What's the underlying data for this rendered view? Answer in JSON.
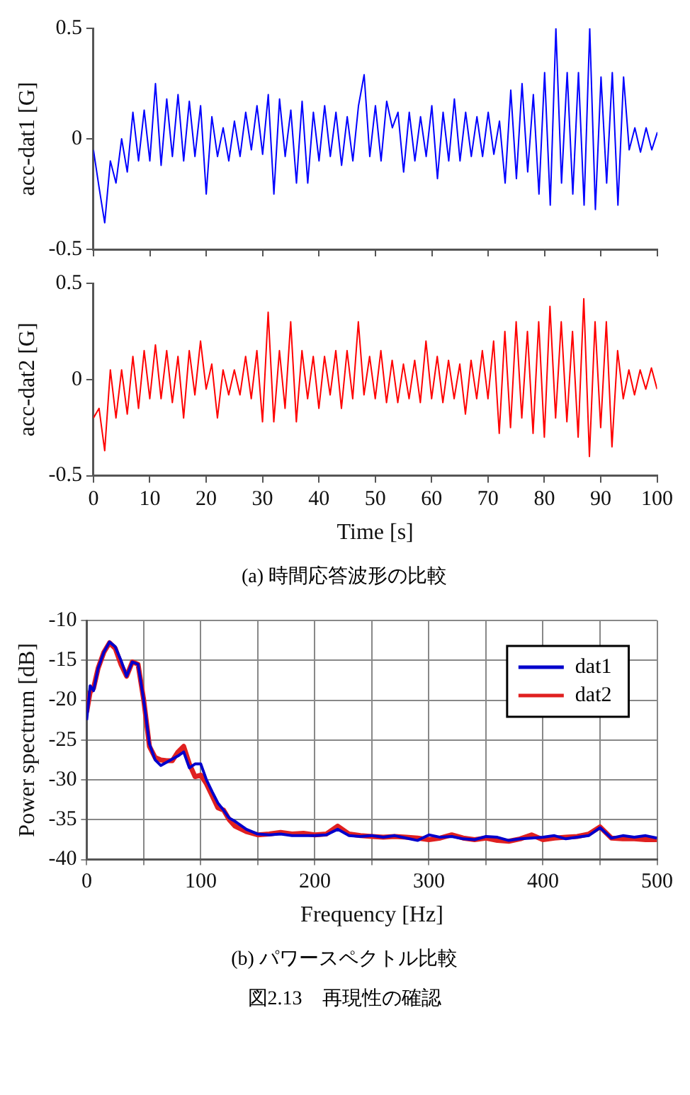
{
  "chart_data": [
    {
      "type": "line",
      "ylabel": "acc-dat1 [G]",
      "xlim": [
        0,
        100
      ],
      "xticks": [
        0,
        10,
        20,
        30,
        40,
        50,
        60,
        70,
        80,
        90,
        100
      ],
      "ylim": [
        -0.5,
        0.5
      ],
      "yticks": [
        -0.5,
        0,
        0.5
      ],
      "tick_labels": "y",
      "grid": false,
      "legend": false,
      "marker": "none",
      "series": [
        {
          "color": "#0000ff",
          "x": [
            0,
            1,
            2,
            3,
            4,
            5,
            6,
            7,
            8,
            9,
            10,
            11,
            12,
            13,
            14,
            15,
            16,
            17,
            18,
            19,
            20,
            21,
            22,
            23,
            24,
            25,
            26,
            27,
            28,
            29,
            30,
            31,
            32,
            33,
            34,
            35,
            36,
            37,
            38,
            39,
            40,
            41,
            42,
            43,
            44,
            45,
            46,
            47,
            48,
            49,
            50,
            51,
            52,
            53,
            54,
            55,
            56,
            57,
            58,
            59,
            60,
            61,
            62,
            63,
            64,
            65,
            66,
            67,
            68,
            69,
            70,
            71,
            72,
            73,
            74,
            75,
            76,
            77,
            78,
            79,
            80,
            81,
            82,
            83,
            84,
            85,
            86,
            87,
            88,
            89,
            90,
            91,
            92,
            93,
            94,
            95,
            96,
            97,
            98,
            99,
            100
          ],
          "values": [
            -0.05,
            -0.22,
            -0.38,
            -0.1,
            -0.2,
            0,
            -0.15,
            0.12,
            -0.1,
            0.13,
            -0.1,
            0.25,
            -0.12,
            0.18,
            -0.08,
            0.2,
            -0.1,
            0.17,
            -0.08,
            0.15,
            -0.25,
            0.1,
            -0.08,
            0.05,
            -0.1,
            0.08,
            -0.08,
            0.12,
            -0.05,
            0.15,
            -0.07,
            0.2,
            -0.25,
            0.18,
            -0.08,
            0.13,
            -0.2,
            0.17,
            -0.2,
            0.12,
            -0.1,
            0.15,
            -0.08,
            0.12,
            -0.12,
            0.1,
            -0.1,
            0.15,
            0.29,
            -0.08,
            0.15,
            -0.1,
            0.17,
            0.05,
            0.12,
            -0.15,
            0.12,
            -0.1,
            0.1,
            -0.08,
            0.15,
            -0.18,
            0.12,
            -0.1,
            0.18,
            -0.1,
            0.12,
            -0.08,
            0.1,
            -0.08,
            0.12,
            -0.07,
            0.08,
            -0.2,
            0.22,
            -0.18,
            0.25,
            -0.15,
            0.2,
            -0.25,
            0.3,
            -0.3,
            0.5,
            -0.2,
            0.3,
            -0.25,
            0.3,
            -0.3,
            0.5,
            -0.32,
            0.28,
            -0.2,
            0.3,
            -0.3,
            0.28,
            -0.05,
            0.05,
            -0.06,
            0.05,
            -0.05,
            0.03
          ]
        }
      ]
    },
    {
      "type": "line",
      "ylabel": "acc-dat2 [G]",
      "xlabel": "Time [s]",
      "xlim": [
        0,
        100
      ],
      "xticks": [
        0,
        10,
        20,
        30,
        40,
        50,
        60,
        70,
        80,
        90,
        100
      ],
      "ylim": [
        -0.5,
        0.5
      ],
      "yticks": [
        -0.5,
        0,
        0.5
      ],
      "grid": false,
      "legend": false,
      "marker": "none",
      "annotations": [
        "(a)  時間応答波形の比較"
      ],
      "series": [
        {
          "color": "#ff0000",
          "x": [
            0,
            1,
            2,
            3,
            4,
            5,
            6,
            7,
            8,
            9,
            10,
            11,
            12,
            13,
            14,
            15,
            16,
            17,
            18,
            19,
            20,
            21,
            22,
            23,
            24,
            25,
            26,
            27,
            28,
            29,
            30,
            31,
            32,
            33,
            34,
            35,
            36,
            37,
            38,
            39,
            40,
            41,
            42,
            43,
            44,
            45,
            46,
            47,
            48,
            49,
            50,
            51,
            52,
            53,
            54,
            55,
            56,
            57,
            58,
            59,
            60,
            61,
            62,
            63,
            64,
            65,
            66,
            67,
            68,
            69,
            70,
            71,
            72,
            73,
            74,
            75,
            76,
            77,
            78,
            79,
            80,
            81,
            82,
            83,
            84,
            85,
            86,
            87,
            88,
            89,
            90,
            91,
            92,
            93,
            94,
            95,
            96,
            97,
            98,
            99,
            100
          ],
          "values": [
            -0.2,
            -0.15,
            -0.37,
            0.05,
            -0.2,
            0.05,
            -0.18,
            0.12,
            -0.15,
            0.15,
            -0.1,
            0.18,
            -0.1,
            0.15,
            -0.12,
            0.12,
            -0.2,
            0.15,
            -0.08,
            0.2,
            -0.05,
            0.08,
            -0.2,
            0.05,
            -0.08,
            0.05,
            -0.08,
            0.12,
            -0.1,
            0.15,
            -0.22,
            0.35,
            -0.22,
            0.15,
            -0.15,
            0.3,
            -0.22,
            0.15,
            -0.1,
            0.12,
            -0.15,
            0.12,
            -0.08,
            0.15,
            -0.15,
            0.15,
            -0.1,
            0.3,
            -0.08,
            0.12,
            -0.1,
            0.15,
            -0.12,
            0.1,
            -0.12,
            0.08,
            -0.1,
            0.1,
            -0.12,
            0.2,
            -0.1,
            0.12,
            -0.12,
            0.1,
            -0.1,
            0.08,
            -0.18,
            0.1,
            -0.1,
            0.15,
            -0.1,
            0.2,
            -0.28,
            0.25,
            -0.25,
            0.3,
            -0.2,
            0.25,
            -0.28,
            0.3,
            -0.3,
            0.38,
            -0.2,
            0.3,
            -0.22,
            0.25,
            -0.3,
            0.42,
            -0.4,
            0.3,
            -0.25,
            0.3,
            -0.35,
            0.15,
            -0.1,
            0.05,
            -0.08,
            0.05,
            -0.05,
            0.06,
            -0.05
          ]
        }
      ]
    },
    {
      "type": "line",
      "ylabel": "Power spectrum [dB]",
      "xlabel": "Frequency [Hz]",
      "xlim": [
        0,
        500
      ],
      "xticks": [
        0,
        {
          "value": 50,
          "label": null
        },
        100,
        {
          "value": 150,
          "label": null
        },
        200,
        {
          "value": 250,
          "label": null
        },
        300,
        {
          "value": 350,
          "label": null
        },
        400,
        {
          "value": 450,
          "label": null
        },
        500
      ],
      "ylim": [
        -40,
        -10
      ],
      "yticks": [
        -40,
        -35,
        -30,
        -25,
        -20,
        -15,
        -10
      ],
      "grid": true,
      "legend": "top right",
      "marker": "none",
      "annotations": [
        "(b)  パワースペクトル比較",
        "図2.13　再現性の確認"
      ],
      "series": [
        {
          "name": "dat1",
          "color": "#0000cc",
          "x": [
            0,
            3,
            6,
            10,
            15,
            20,
            25,
            30,
            35,
            40,
            45,
            50,
            55,
            60,
            65,
            70,
            75,
            80,
            85,
            90,
            95,
            100,
            105,
            110,
            115,
            120,
            125,
            130,
            140,
            150,
            160,
            170,
            180,
            190,
            200,
            210,
            220,
            230,
            240,
            250,
            260,
            270,
            280,
            290,
            300,
            310,
            320,
            330,
            340,
            350,
            360,
            370,
            380,
            390,
            400,
            410,
            420,
            430,
            440,
            450,
            460,
            470,
            480,
            490,
            500
          ],
          "values": [
            -22.5,
            -18.2,
            -18.8,
            -16,
            -14,
            -12.7,
            -13.3,
            -15,
            -17,
            -15.2,
            -15.5,
            -20,
            -25.5,
            -27.5,
            -28.2,
            -27.8,
            -27.4,
            -27,
            -26.5,
            -28.5,
            -28,
            -28,
            -30,
            -31.5,
            -32.9,
            -33.8,
            -34.8,
            -35.2,
            -36.2,
            -36.8,
            -36.9,
            -36.8,
            -37,
            -37,
            -37,
            -36.9,
            -36.2,
            -37,
            -37.1,
            -37,
            -37.2,
            -37,
            -37.3,
            -37.6,
            -36.9,
            -37.2,
            -37.1,
            -37.4,
            -37.5,
            -37.1,
            -37.2,
            -37.6,
            -37.4,
            -37.3,
            -37.2,
            -37,
            -37.4,
            -37.2,
            -37,
            -36,
            -37.3,
            -37,
            -37.2,
            -37,
            -37.3
          ]
        },
        {
          "name": "dat2",
          "color": "#e02020",
          "x": [
            0,
            3,
            6,
            10,
            15,
            20,
            25,
            30,
            35,
            40,
            45,
            50,
            55,
            60,
            65,
            70,
            75,
            80,
            85,
            90,
            95,
            100,
            105,
            110,
            115,
            120,
            125,
            130,
            140,
            150,
            160,
            170,
            180,
            190,
            200,
            210,
            220,
            230,
            240,
            250,
            260,
            270,
            280,
            290,
            300,
            310,
            320,
            330,
            340,
            350,
            360,
            370,
            380,
            390,
            400,
            410,
            420,
            430,
            440,
            450,
            460,
            470,
            480,
            490,
            500
          ],
          "values": [
            -21.5,
            -19,
            -18.5,
            -16,
            -14,
            -12.8,
            -13.5,
            -15.5,
            -17,
            -15.2,
            -15.5,
            -20,
            -25.8,
            -27.2,
            -27.5,
            -27.6,
            -27.6,
            -26.5,
            -25.8,
            -28,
            -29.6,
            -29.4,
            -30.5,
            -32,
            -33.5,
            -33.8,
            -35,
            -35.8,
            -36.5,
            -36.9,
            -36.8,
            -36.6,
            -36.8,
            -36.7,
            -36.9,
            -36.8,
            -35.8,
            -36.8,
            -37,
            -37.1,
            -37.2,
            -37.1,
            -37.2,
            -37.3,
            -37.5,
            -37.3,
            -36.9,
            -37.3,
            -37.5,
            -37.3,
            -37.6,
            -37.7,
            -37.4,
            -36.9,
            -37.5,
            -37.3,
            -37.2,
            -37.1,
            -36.8,
            -35.9,
            -37.3,
            -37.4,
            -37.4,
            -37.5,
            -37.5
          ]
        }
      ]
    }
  ]
}
